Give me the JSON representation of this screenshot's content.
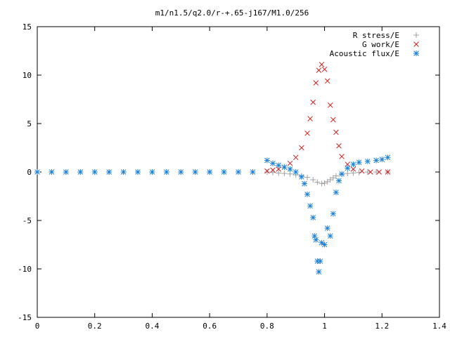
{
  "chart_data": {
    "type": "scatter",
    "title": "m1/n1.5/q2.0/r-+.65-j167/M1.0/256",
    "xlabel": "",
    "ylabel": "",
    "xlim": [
      0,
      1.4
    ],
    "ylim": [
      -15,
      15
    ],
    "xticks": [
      "0",
      "0.2",
      "0.4",
      "0.6",
      "0.8",
      "1",
      "1.2",
      "1.4"
    ],
    "yticks": [
      "15",
      "10",
      "5",
      "0",
      "-5",
      "-10",
      "-15"
    ],
    "grid": false,
    "legend_position": "top-right",
    "series": [
      {
        "name": "R stress/E",
        "marker": "plus",
        "color": "#a0a0a0",
        "points": [
          [
            0.0,
            0
          ],
          [
            0.05,
            0
          ],
          [
            0.1,
            0
          ],
          [
            0.15,
            0
          ],
          [
            0.2,
            0
          ],
          [
            0.25,
            0
          ],
          [
            0.3,
            0
          ],
          [
            0.35,
            0
          ],
          [
            0.4,
            0
          ],
          [
            0.45,
            0
          ],
          [
            0.5,
            0
          ],
          [
            0.55,
            0
          ],
          [
            0.6,
            0
          ],
          [
            0.65,
            0
          ],
          [
            0.7,
            0
          ],
          [
            0.75,
            0
          ],
          [
            0.8,
            0.0
          ],
          [
            0.82,
            -0.05
          ],
          [
            0.84,
            -0.1
          ],
          [
            0.86,
            -0.15
          ],
          [
            0.88,
            -0.2
          ],
          [
            0.9,
            -0.3
          ],
          [
            0.92,
            -0.4
          ],
          [
            0.94,
            -0.55
          ],
          [
            0.96,
            -0.8
          ],
          [
            0.975,
            -1.05
          ],
          [
            0.99,
            -1.2
          ],
          [
            1.0,
            -1.15
          ],
          [
            1.01,
            -1.0
          ],
          [
            1.02,
            -0.8
          ],
          [
            1.03,
            -0.6
          ],
          [
            1.04,
            -0.4
          ],
          [
            1.06,
            -0.25
          ],
          [
            1.08,
            -0.15
          ],
          [
            1.1,
            -0.1
          ],
          [
            1.12,
            -0.05
          ],
          [
            1.15,
            0.0
          ],
          [
            1.18,
            0.0
          ],
          [
            1.22,
            0.0
          ]
        ]
      },
      {
        "name": "G work/E",
        "marker": "cross",
        "color": "#cc2222",
        "points": [
          [
            0.8,
            0.1
          ],
          [
            0.82,
            0.2
          ],
          [
            0.84,
            0.3
          ],
          [
            0.86,
            0.5
          ],
          [
            0.88,
            0.9
          ],
          [
            0.9,
            1.5
          ],
          [
            0.92,
            2.5
          ],
          [
            0.94,
            4.0
          ],
          [
            0.95,
            5.5
          ],
          [
            0.96,
            7.2
          ],
          [
            0.97,
            9.2
          ],
          [
            0.98,
            10.5
          ],
          [
            0.99,
            11.1
          ],
          [
            1.0,
            10.6
          ],
          [
            1.01,
            9.4
          ],
          [
            1.02,
            6.9
          ],
          [
            1.03,
            5.4
          ],
          [
            1.04,
            4.1
          ],
          [
            1.05,
            2.7
          ],
          [
            1.06,
            1.6
          ],
          [
            1.08,
            0.8
          ],
          [
            1.1,
            0.3
          ],
          [
            1.13,
            0.1
          ],
          [
            1.16,
            0.0
          ],
          [
            1.19,
            0.0
          ],
          [
            1.22,
            0.0
          ]
        ]
      },
      {
        "name": "Acoustic flux/E",
        "marker": "star",
        "color": "#1a80d8",
        "points": [
          [
            0.0,
            0
          ],
          [
            0.05,
            0
          ],
          [
            0.1,
            0
          ],
          [
            0.15,
            0
          ],
          [
            0.2,
            0
          ],
          [
            0.25,
            0
          ],
          [
            0.3,
            0
          ],
          [
            0.35,
            0
          ],
          [
            0.4,
            0
          ],
          [
            0.45,
            0
          ],
          [
            0.5,
            0
          ],
          [
            0.55,
            0
          ],
          [
            0.6,
            0
          ],
          [
            0.65,
            0
          ],
          [
            0.7,
            0
          ],
          [
            0.75,
            0
          ],
          [
            0.8,
            1.2
          ],
          [
            0.82,
            0.9
          ],
          [
            0.84,
            0.7
          ],
          [
            0.86,
            0.5
          ],
          [
            0.88,
            0.3
          ],
          [
            0.9,
            0.0
          ],
          [
            0.92,
            -0.5
          ],
          [
            0.93,
            -1.2
          ],
          [
            0.94,
            -2.3
          ],
          [
            0.95,
            -3.5
          ],
          [
            0.96,
            -4.7
          ],
          [
            0.965,
            -6.6
          ],
          [
            0.97,
            -7.0
          ],
          [
            0.975,
            -9.2
          ],
          [
            0.98,
            -10.3
          ],
          [
            0.985,
            -9.2
          ],
          [
            0.99,
            -7.3
          ],
          [
            1.0,
            -7.5
          ],
          [
            1.01,
            -5.8
          ],
          [
            1.02,
            -6.6
          ],
          [
            1.03,
            -4.3
          ],
          [
            1.04,
            -2.1
          ],
          [
            1.05,
            -0.9
          ],
          [
            1.06,
            -0.2
          ],
          [
            1.08,
            0.4
          ],
          [
            1.1,
            0.8
          ],
          [
            1.12,
            1.0
          ],
          [
            1.15,
            1.1
          ],
          [
            1.18,
            1.2
          ],
          [
            1.2,
            1.3
          ],
          [
            1.22,
            1.5
          ]
        ]
      }
    ]
  }
}
